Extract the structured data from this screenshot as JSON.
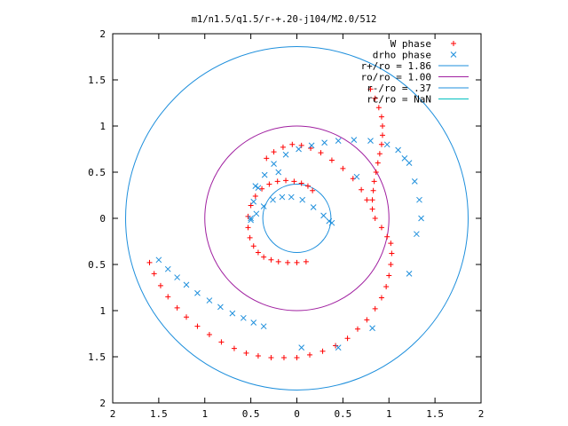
{
  "chart_data": {
    "type": "scatter",
    "title": "m1/n1.5/q1.5/r-+.20-j104/M2.0/512",
    "xlabel": "",
    "ylabel": "",
    "xlim": [
      -2,
      2
    ],
    "ylim": [
      -2,
      2
    ],
    "grid": false,
    "legend_position": "top-right",
    "x_ticks": [
      -2,
      -1.5,
      -1,
      -0.5,
      0,
      0.5,
      1,
      1.5,
      2
    ],
    "y_ticks": [
      -2,
      -1.5,
      -1,
      -0.5,
      0,
      0.5,
      1,
      1.5,
      2
    ],
    "x_tick_labels": [
      "2",
      "1.5",
      "1",
      "0.5",
      "0",
      "0.5",
      "1",
      "1.5",
      "2"
    ],
    "y_tick_labels": [
      "2",
      "1.5",
      "1",
      "0.5",
      "0",
      "0.5",
      "1",
      "1.5",
      "2"
    ],
    "series": [
      {
        "name": "W phase",
        "marker": "+",
        "color": "#ff0000",
        "x": [
          0.1,
          0.0,
          -0.1,
          -0.2,
          -0.28,
          -0.36,
          -0.42,
          -0.47,
          -0.51,
          -0.53,
          -0.53,
          -0.5,
          -0.45,
          -0.38,
          -0.3,
          -0.21,
          -0.12,
          -0.03,
          0.05,
          0.12,
          0.17,
          -0.33,
          -0.25,
          -0.15,
          -0.05,
          0.05,
          0.15,
          0.26,
          0.38,
          0.5,
          0.61,
          0.7,
          0.76,
          -1.6,
          -1.55,
          -1.48,
          -1.4,
          -1.3,
          -1.2,
          -1.08,
          -0.95,
          -0.82,
          -0.68,
          -0.55,
          -0.42,
          -0.28,
          -0.14,
          0.0,
          0.14,
          0.28,
          0.42,
          0.55,
          0.66,
          0.76,
          0.85,
          0.92,
          0.97,
          1.0,
          1.02,
          1.03,
          1.02,
          0.98,
          0.92,
          0.85,
          0.82,
          0.82,
          0.83,
          0.84,
          0.86,
          0.88,
          0.9,
          0.92,
          0.93,
          0.93,
          0.92,
          0.89,
          0.85,
          0.8
        ],
        "y": [
          -0.47,
          -0.48,
          -0.48,
          -0.47,
          -0.45,
          -0.42,
          -0.37,
          -0.3,
          -0.21,
          -0.1,
          0.02,
          0.14,
          0.24,
          0.32,
          0.37,
          0.4,
          0.41,
          0.4,
          0.38,
          0.35,
          0.3,
          0.65,
          0.72,
          0.77,
          0.8,
          0.79,
          0.76,
          0.71,
          0.63,
          0.54,
          0.43,
          0.31,
          0.2,
          -0.48,
          -0.6,
          -0.73,
          -0.85,
          -0.97,
          -1.07,
          -1.17,
          -1.26,
          -1.34,
          -1.41,
          -1.46,
          -1.49,
          -1.51,
          -1.51,
          -1.51,
          -1.48,
          -1.44,
          -1.38,
          -1.3,
          -1.2,
          -1.1,
          -0.98,
          -0.86,
          -0.74,
          -0.62,
          -0.5,
          -0.38,
          -0.27,
          -0.2,
          -0.1,
          0.0,
          0.1,
          0.2,
          0.3,
          0.4,
          0.5,
          0.6,
          0.7,
          0.8,
          0.9,
          1.0,
          1.1,
          1.2,
          1.3,
          1.4
        ]
      },
      {
        "name": "drho phase",
        "marker": "x",
        "color": "#1e8fdc",
        "x": [
          -0.5,
          -0.47,
          -0.42,
          -0.35,
          -0.25,
          -0.12,
          0.02,
          0.16,
          0.3,
          0.45,
          0.62,
          0.8,
          0.98,
          1.1,
          1.17,
          -0.5,
          -0.44,
          -0.36,
          -0.26,
          -0.16,
          -0.06,
          0.06,
          0.18,
          0.29,
          0.35,
          0.38,
          -1.5,
          -1.4,
          -1.3,
          -1.2,
          -1.08,
          -0.95,
          -0.83,
          -0.7,
          -0.58,
          -0.47,
          -0.36,
          0.05,
          0.45,
          0.82,
          1.22,
          1.3,
          1.35,
          1.33,
          1.28,
          1.22,
          0.65,
          -0.2,
          -0.45
        ],
        "y": [
          0.0,
          0.18,
          0.33,
          0.47,
          0.59,
          0.69,
          0.75,
          0.79,
          0.82,
          0.84,
          0.85,
          0.84,
          0.8,
          0.74,
          0.65,
          -0.02,
          0.05,
          0.13,
          0.2,
          0.23,
          0.23,
          0.2,
          0.12,
          0.03,
          -0.03,
          -0.05,
          -0.45,
          -0.55,
          -0.64,
          -0.72,
          -0.81,
          -0.89,
          -0.96,
          -1.03,
          -1.08,
          -1.13,
          -1.17,
          -1.4,
          -1.4,
          -1.19,
          -0.6,
          -0.17,
          0.0,
          0.2,
          0.4,
          0.6,
          0.45,
          0.5,
          0.35
        ]
      }
    ],
    "circles": [
      {
        "label": "r+/ro = 1.86",
        "radius": 1.86,
        "color": "#1e8fdc"
      },
      {
        "label": "ro/ro = 1.00",
        "radius": 1.0,
        "color": "#a020a0"
      },
      {
        "label": "r-/ro = .37",
        "radius": 0.37,
        "color": "#1e8fdc"
      },
      {
        "label": "rc/ro = NaN",
        "radius": null,
        "color": "#00c0c0"
      }
    ]
  }
}
